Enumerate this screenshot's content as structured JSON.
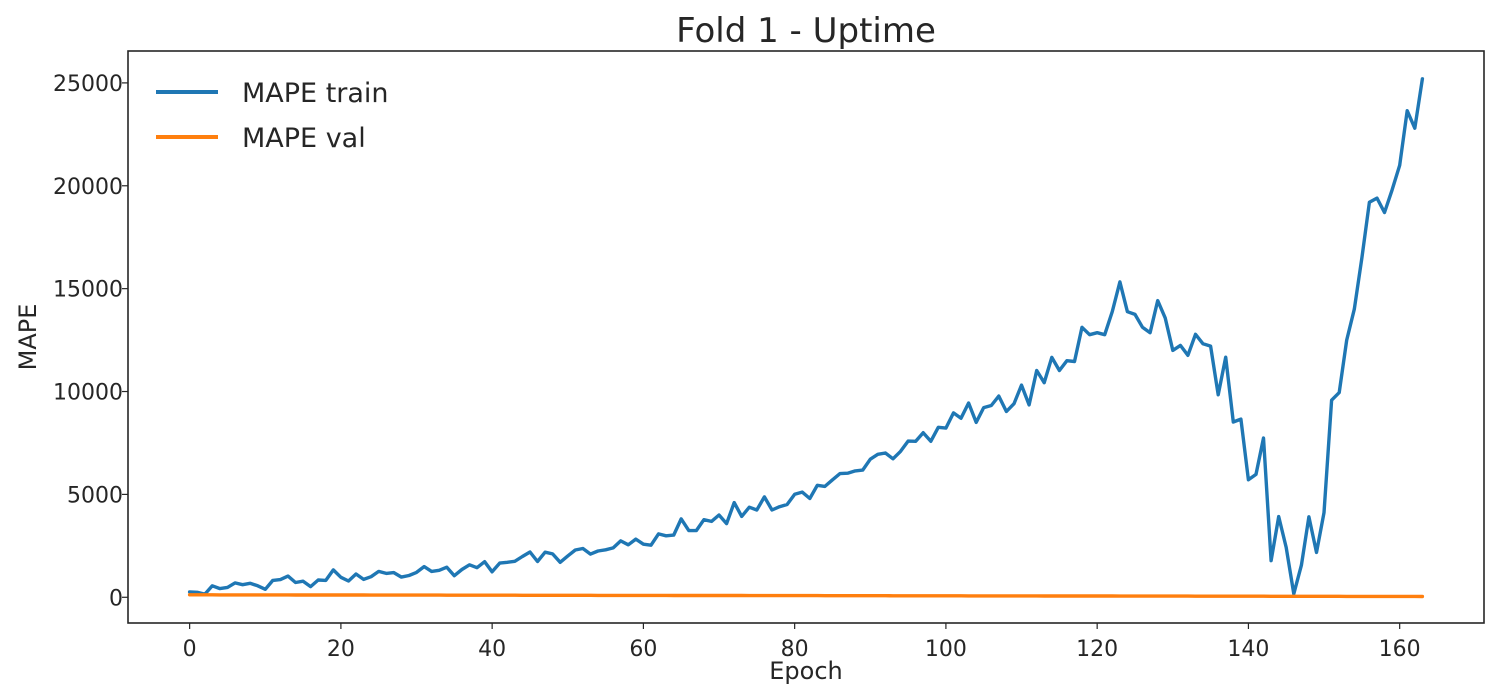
{
  "chart_data": {
    "type": "line",
    "title": "Fold 1 - Uptime",
    "xlabel": "Epoch",
    "ylabel": "MAPE",
    "xlim": [
      -8.15,
      171.15
    ],
    "ylim": [
      -1250,
      26550
    ],
    "x_ticks": [
      0,
      20,
      40,
      60,
      80,
      100,
      120,
      140,
      160
    ],
    "y_ticks": [
      0,
      5000,
      10000,
      15000,
      20000,
      25000
    ],
    "grid": false,
    "legend_position": "top-left",
    "series": [
      {
        "name": "MAPE train",
        "color": "#1f77b4",
        "x_start": 0,
        "values": [
          260,
          240,
          150,
          560,
          420,
          480,
          700,
          610,
          680,
          560,
          390,
          820,
          860,
          1030,
          720,
          780,
          520,
          840,
          820,
          1330,
          970,
          790,
          1130,
          870,
          1000,
          1260,
          1160,
          1200,
          980,
          1060,
          1210,
          1490,
          1260,
          1310,
          1460,
          1050,
          1350,
          1580,
          1440,
          1730,
          1240,
          1660,
          1700,
          1750,
          1980,
          2200,
          1740,
          2190,
          2110,
          1700,
          2010,
          2300,
          2370,
          2100,
          2250,
          2310,
          2400,
          2740,
          2550,
          2830,
          2580,
          2530,
          3080,
          2990,
          3020,
          3810,
          3240,
          3240,
          3770,
          3690,
          4000,
          3580,
          4600,
          3930,
          4380,
          4240,
          4880,
          4240,
          4400,
          4510,
          5010,
          5110,
          4800,
          5440,
          5390,
          5710,
          6010,
          6030,
          6140,
          6180,
          6710,
          6950,
          7010,
          6730,
          7090,
          7590,
          7580,
          8000,
          7580,
          8260,
          8220,
          8960,
          8700,
          9440,
          8500,
          9220,
          9320,
          9780,
          9030,
          9410,
          10310,
          9350,
          11020,
          10430,
          11660,
          11020,
          11500,
          11460,
          13120,
          12760,
          12860,
          12760,
          13890,
          15330,
          13880,
          13750,
          13120,
          12860,
          14420,
          13580,
          12000,
          12240,
          11760,
          12780,
          12320,
          12210,
          9840,
          11670,
          8520,
          8660,
          5710,
          5970,
          7740,
          1780,
          3920,
          2420,
          170,
          1560,
          3910,
          2180,
          4110,
          9580,
          9950,
          12500,
          14000,
          16500,
          19200,
          19400,
          18700,
          19800,
          21000,
          23650,
          22800,
          25200
        ]
      },
      {
        "name": "MAPE val",
        "color": "#ff7f0e",
        "x_start": 0,
        "values": "decay:120:40:164"
      }
    ]
  }
}
